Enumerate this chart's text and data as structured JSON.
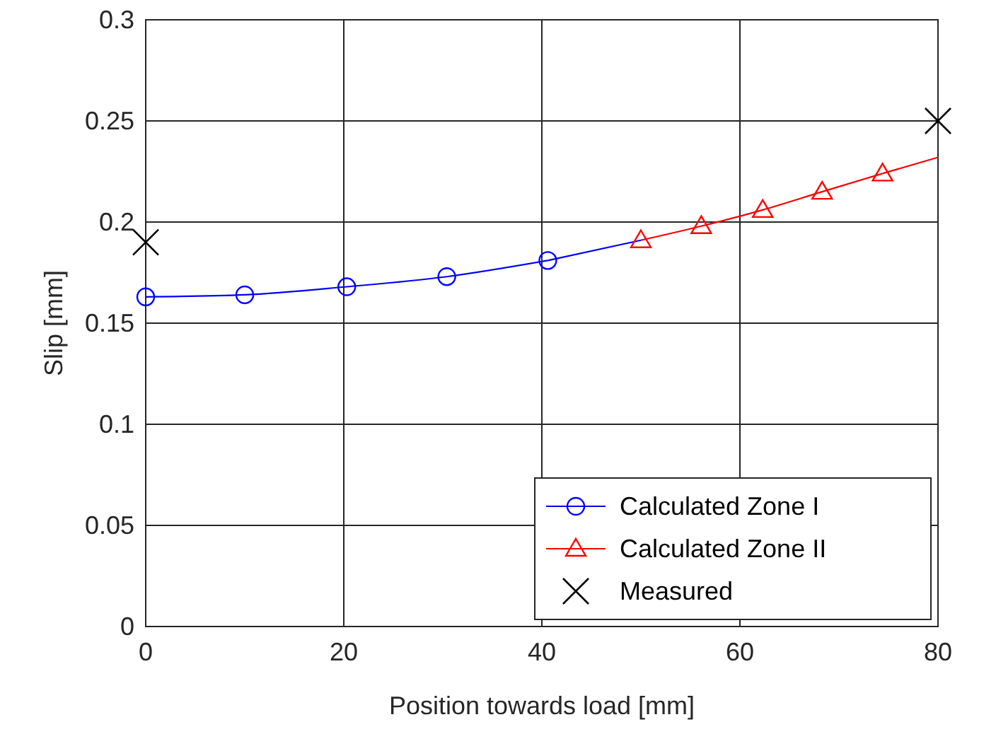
{
  "chart_data": {
    "type": "line",
    "xlabel": "Position towards load [mm]",
    "ylabel": "Slip [mm]",
    "xlim": [
      0,
      80
    ],
    "ylim": [
      0,
      0.3
    ],
    "xticks": [
      0,
      20,
      40,
      60,
      80
    ],
    "yticks": [
      0,
      0.05,
      0.1,
      0.15,
      0.2,
      0.25,
      0.3
    ],
    "grid": true,
    "legend": "bottom right",
    "line_style": "solid",
    "series": [
      {
        "name": "Calculated Zone I",
        "color": "#0000ff",
        "marker": "circle",
        "x": [
          0,
          10,
          20.3,
          30.4,
          40.6
        ],
        "values": [
          0.163,
          0.164,
          0.168,
          0.173,
          0.181
        ]
      },
      {
        "color": "#0000ff",
        "marker": "none",
        "x": [
          40.6,
          50
        ],
        "values": [
          0.181,
          0.191
        ]
      },
      {
        "name": "Calculated Zone II",
        "color": "#ff0000",
        "marker": "triangle",
        "x": [
          50,
          56.1,
          62.3,
          68.3,
          74.4
        ],
        "values": [
          0.191,
          0.198,
          0.206,
          0.215,
          0.224
        ]
      },
      {
        "color": "#ff0000",
        "marker": "none",
        "x": [
          74.4,
          80
        ],
        "values": [
          0.224,
          0.232
        ]
      },
      {
        "name": "Measured",
        "type": "scatter",
        "color": "#000000",
        "marker": "cross",
        "x": [
          0,
          80
        ],
        "values": [
          0.19,
          0.25
        ]
      }
    ]
  }
}
